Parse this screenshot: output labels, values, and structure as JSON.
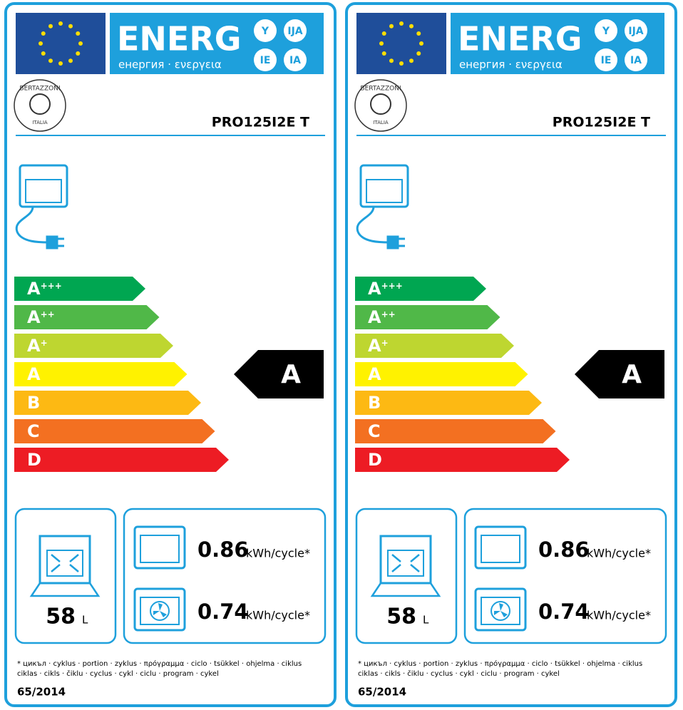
{
  "labels": [
    {
      "energy": "ENERG",
      "energy_sub": "енергия · ενεργεια",
      "languages": [
        "Y",
        "IJA",
        "IE",
        "IA"
      ],
      "brand": "BERTAZZONI",
      "brand_sub": "ITALIA",
      "model": "PRO125I2E  T",
      "classes": [
        {
          "letter": "A",
          "sup": "+++",
          "color": "#00a651"
        },
        {
          "letter": "A",
          "sup": "++",
          "color": "#50b848"
        },
        {
          "letter": "A",
          "sup": "+",
          "color": "#bed630"
        },
        {
          "letter": "A",
          "sup": "",
          "color": "#fff200"
        },
        {
          "letter": "B",
          "sup": "",
          "color": "#fdb913"
        },
        {
          "letter": "C",
          "sup": "",
          "color": "#f37021"
        },
        {
          "letter": "D",
          "sup": "",
          "color": "#ed1c24"
        }
      ],
      "rating": "A",
      "volume": 58,
      "volume_unit": "L",
      "conventional": 0.86,
      "conventional_unit": "kWh/cycle*",
      "fan": 0.74,
      "fan_unit": "kWh/cycle*",
      "footnote": [
        "* цикъл · cyklus · portion · zyklus · πρόγραμμα · ciclo · tsükkel · ohjelma · ciklus",
        "ciklas · cikls · čiklu · cyclus · cykl · ciclu · program · cykel"
      ],
      "regulation": "65/2014"
    },
    {
      "energy": "ENERG",
      "energy_sub": "енергия · ενεργεια",
      "languages": [
        "Y",
        "IJA",
        "IE",
        "IA"
      ],
      "brand": "BERTAZZONI",
      "brand_sub": "ITALIA",
      "model": "PRO125I2E  T",
      "classes": [
        {
          "letter": "A",
          "sup": "+++",
          "color": "#00a651"
        },
        {
          "letter": "A",
          "sup": "++",
          "color": "#50b848"
        },
        {
          "letter": "A",
          "sup": "+",
          "color": "#bed630"
        },
        {
          "letter": "A",
          "sup": "",
          "color": "#fff200"
        },
        {
          "letter": "B",
          "sup": "",
          "color": "#fdb913"
        },
        {
          "letter": "C",
          "sup": "",
          "color": "#f37021"
        },
        {
          "letter": "D",
          "sup": "",
          "color": "#ed1c24"
        }
      ],
      "rating": "A",
      "volume": 58,
      "volume_unit": "L",
      "conventional": 0.86,
      "conventional_unit": "kWh/cycle*",
      "fan": 0.74,
      "fan_unit": "kWh/cycle*",
      "footnote": [
        "* цикъл · cyklus · portion · zyklus · πρόγραμμα · ciclo · tsükkel · ohjelma · ciklus",
        "ciklas · cikls · čiklu · cyclus · cykl · ciclu · program · cykel"
      ],
      "regulation": "65/2014"
    }
  ]
}
